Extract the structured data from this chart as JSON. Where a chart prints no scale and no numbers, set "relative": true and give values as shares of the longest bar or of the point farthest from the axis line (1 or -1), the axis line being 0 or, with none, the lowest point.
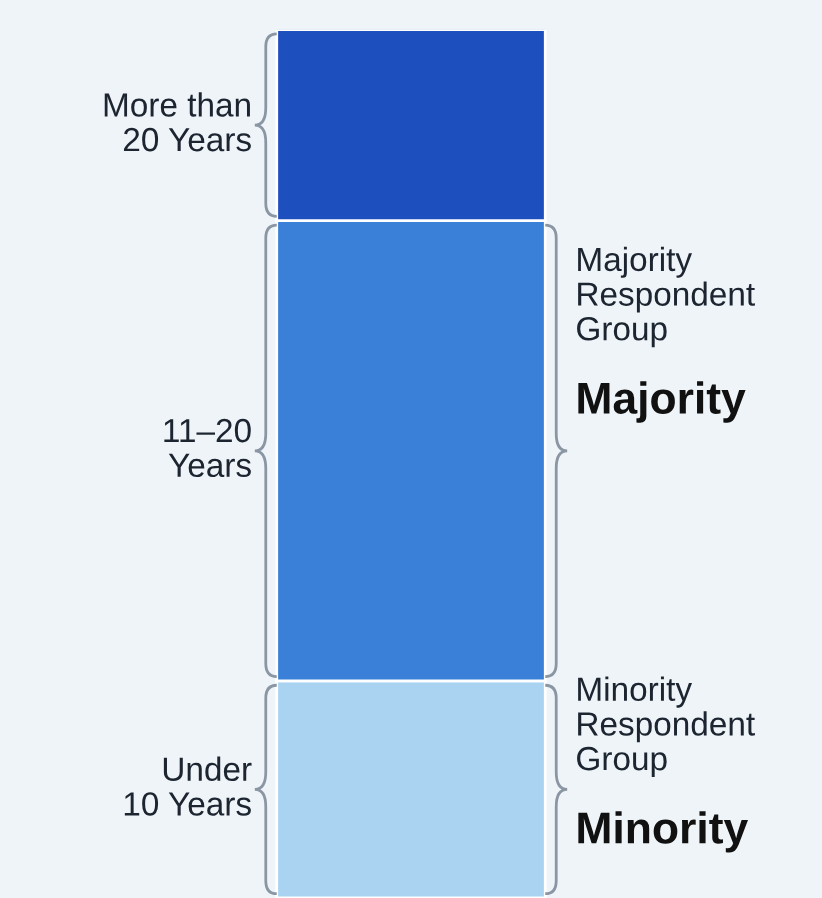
{
  "chart_data": {
    "type": "bar",
    "stacked": true,
    "relative": true,
    "categories": [
      null
    ],
    "series": [
      {
        "name": "Under\n10 Years",
        "color": "#a9d3f1",
        "values": [
          0.25
        ]
      },
      {
        "name": "11–20\nYears",
        "color": "#3a7fd8",
        "values": [
          0.53
        ]
      },
      {
        "name": "More than\n20 Years",
        "color": "#1e4fbf",
        "values": [
          0.22
        ]
      }
    ],
    "annotations": [
      "Majority\nRespondent\nGroup",
      "Majority",
      "Minority\nRespondent\nGroup",
      "Minority"
    ]
  }
}
